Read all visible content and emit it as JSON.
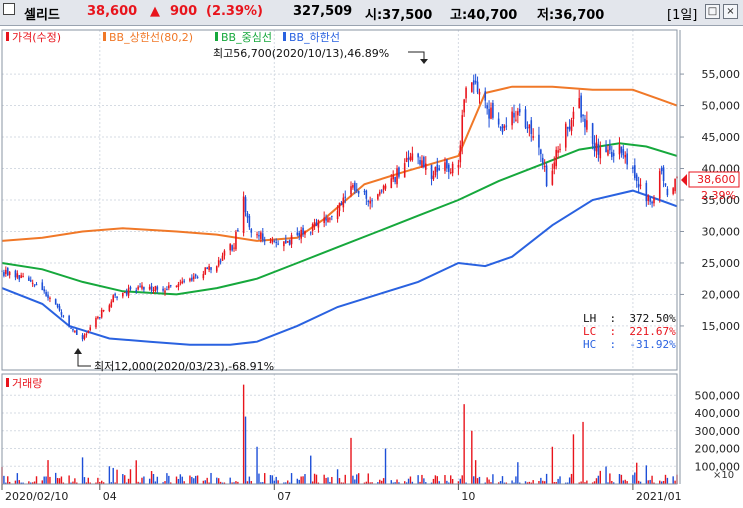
{
  "header": {
    "stock_name": "셀리드",
    "price": "38,600",
    "change_arrow": "▲",
    "change": "900",
    "change_pct": "(2.39%)",
    "volume": "327,509",
    "open": "시:37,500",
    "high": "고:40,700",
    "low": "저:36,700",
    "period": "[1일]"
  },
  "legend": {
    "price": "가격(수정)",
    "upper": "BB_상한선(80,2)",
    "middle": "BB_중심선",
    "lower": "BB_하한선",
    "volume": "거래량"
  },
  "annotations": {
    "max": "최고56,700(2020/10/13),46.89%",
    "min": "최저12,000(2020/03/23),-68.91%",
    "lh": "LH  :  372.50%",
    "lc": "LC  :  221.67%",
    "hc": "HC  :  -31.92%",
    "last_price": "38,600",
    "last_pct": "2.39%",
    "vol_unit": "×10"
  },
  "colors": {
    "up": "#e8141c",
    "down": "#1d4fd8",
    "upper_band": "#f07828",
    "middle_band": "#16a83c",
    "lower_band": "#2a62e0"
  },
  "chart_data": [
    {
      "type": "candlestick",
      "ylim": [
        8000,
        62000
      ],
      "yticks": [
        15000,
        20000,
        25000,
        30000,
        35000,
        40000,
        45000,
        50000,
        55000
      ],
      "ytick_labels": [
        "15,000",
        "20,000",
        "25,000",
        "30,000",
        "35,000",
        "40,000",
        "45,000",
        "50,000",
        "55,000"
      ],
      "x_labels": [
        "2020/02/10",
        "04",
        "07",
        "10",
        "2021/01"
      ],
      "x_label_dates": [
        "2020-02-10",
        "2020-04-01",
        "2020-07-01",
        "2020-10-05",
        "2021-01-04"
      ],
      "x_range": [
        "2020-02-10",
        "2021-01-27"
      ],
      "close_path": [
        [
          "2020-02-10",
          23500
        ],
        [
          "2020-02-20",
          22800
        ],
        [
          "2020-03-02",
          21000
        ],
        [
          "2020-03-09",
          18500
        ],
        [
          "2020-03-16",
          15000
        ],
        [
          "2020-03-23",
          12800
        ],
        [
          "2020-03-30",
          16000
        ],
        [
          "2020-04-08",
          19500
        ],
        [
          "2020-04-20",
          21000
        ],
        [
          "2020-05-04",
          21000
        ],
        [
          "2020-05-18",
          22500
        ],
        [
          "2020-06-01",
          25000
        ],
        [
          "2020-06-10",
          28000
        ],
        [
          "2020-06-15",
          35000
        ],
        [
          "2020-06-18",
          30000
        ],
        [
          "2020-06-26",
          29000
        ],
        [
          "2020-07-06",
          28000
        ],
        [
          "2020-07-20",
          30500
        ],
        [
          "2020-07-30",
          32000
        ],
        [
          "2020-08-10",
          37000
        ],
        [
          "2020-08-20",
          35000
        ],
        [
          "2020-08-31",
          38000
        ],
        [
          "2020-09-10",
          42000
        ],
        [
          "2020-09-21",
          39000
        ],
        [
          "2020-10-05",
          41000
        ],
        [
          "2020-10-08",
          52000
        ],
        [
          "2020-10-13",
          54500
        ],
        [
          "2020-10-19",
          50000
        ],
        [
          "2020-10-28",
          46000
        ],
        [
          "2020-11-05",
          49000
        ],
        [
          "2020-11-16",
          44000
        ],
        [
          "2020-11-20",
          38000
        ],
        [
          "2020-11-30",
          46000
        ],
        [
          "2020-12-07",
          50000
        ],
        [
          "2020-12-14",
          44000
        ],
        [
          "2020-12-22",
          42000
        ],
        [
          "2020-12-30",
          43000
        ],
        [
          "2021-01-06",
          37500
        ],
        [
          "2021-01-11",
          35500
        ],
        [
          "2021-01-14",
          34000
        ],
        [
          "2021-01-18",
          40000
        ],
        [
          "2021-01-22",
          36500
        ],
        [
          "2021-01-27",
          38600
        ]
      ],
      "upper_band": [
        [
          "2020-02-10",
          28500
        ],
        [
          "2020-03-02",
          29000
        ],
        [
          "2020-03-23",
          30000
        ],
        [
          "2020-04-13",
          30500
        ],
        [
          "2020-05-11",
          30000
        ],
        [
          "2020-06-01",
          29500
        ],
        [
          "2020-06-22",
          28500
        ],
        [
          "2020-07-13",
          29000
        ],
        [
          "2020-07-27",
          32000
        ],
        [
          "2020-08-17",
          37500
        ],
        [
          "2020-09-07",
          39500
        ],
        [
          "2020-10-05",
          42000
        ],
        [
          "2020-10-19",
          52000
        ],
        [
          "2020-11-02",
          53000
        ],
        [
          "2020-11-23",
          53000
        ],
        [
          "2020-12-14",
          52500
        ],
        [
          "2021-01-04",
          52500
        ],
        [
          "2021-01-18",
          51000
        ],
        [
          "2021-01-27",
          50000
        ]
      ],
      "middle_band": [
        [
          "2020-02-10",
          25000
        ],
        [
          "2020-03-02",
          24000
        ],
        [
          "2020-03-23",
          22000
        ],
        [
          "2020-04-13",
          20500
        ],
        [
          "2020-05-11",
          20000
        ],
        [
          "2020-06-01",
          21000
        ],
        [
          "2020-06-22",
          22500
        ],
        [
          "2020-07-13",
          25000
        ],
        [
          "2020-08-03",
          27500
        ],
        [
          "2020-08-24",
          30000
        ],
        [
          "2020-09-14",
          32500
        ],
        [
          "2020-10-05",
          35000
        ],
        [
          "2020-10-26",
          38000
        ],
        [
          "2020-11-16",
          40500
        ],
        [
          "2020-12-07",
          43000
        ],
        [
          "2020-12-28",
          44000
        ],
        [
          "2021-01-11",
          43500
        ],
        [
          "2021-01-27",
          42000
        ]
      ],
      "lower_band": [
        [
          "2020-02-10",
          21000
        ],
        [
          "2020-03-02",
          18500
        ],
        [
          "2020-03-16",
          15000
        ],
        [
          "2020-04-06",
          13000
        ],
        [
          "2020-04-27",
          12500
        ],
        [
          "2020-05-18",
          12000
        ],
        [
          "2020-06-08",
          12000
        ],
        [
          "2020-06-22",
          12500
        ],
        [
          "2020-07-13",
          15000
        ],
        [
          "2020-08-03",
          18000
        ],
        [
          "2020-08-24",
          20000
        ],
        [
          "2020-09-14",
          22000
        ],
        [
          "2020-10-05",
          25000
        ],
        [
          "2020-10-19",
          24500
        ],
        [
          "2020-11-02",
          26000
        ],
        [
          "2020-11-23",
          31000
        ],
        [
          "2020-12-14",
          35000
        ],
        [
          "2021-01-04",
          36500
        ],
        [
          "2021-01-18",
          35000
        ],
        [
          "2021-01-27",
          34000
        ]
      ]
    },
    {
      "type": "bar",
      "name": "거래량",
      "ylim": [
        0,
        620000
      ],
      "yticks": [
        100000,
        200000,
        300000,
        400000,
        500000
      ],
      "ytick_labels": [
        "100,000",
        "200,000",
        "300,000",
        "400,000",
        "500,000"
      ],
      "spikes": [
        [
          "2020-03-23",
          150000
        ],
        [
          "2020-04-06",
          100000
        ],
        [
          "2020-06-15",
          560000
        ],
        [
          "2020-06-16",
          380000
        ],
        [
          "2020-06-22",
          210000
        ],
        [
          "2020-07-20",
          160000
        ],
        [
          "2020-08-10",
          260000
        ],
        [
          "2020-08-28",
          200000
        ],
        [
          "2020-10-08",
          450000
        ],
        [
          "2020-10-12",
          300000
        ],
        [
          "2020-11-23",
          210000
        ],
        [
          "2020-12-04",
          280000
        ],
        [
          "2020-12-09",
          350000
        ],
        [
          "2021-01-06",
          120000
        ]
      ]
    }
  ]
}
